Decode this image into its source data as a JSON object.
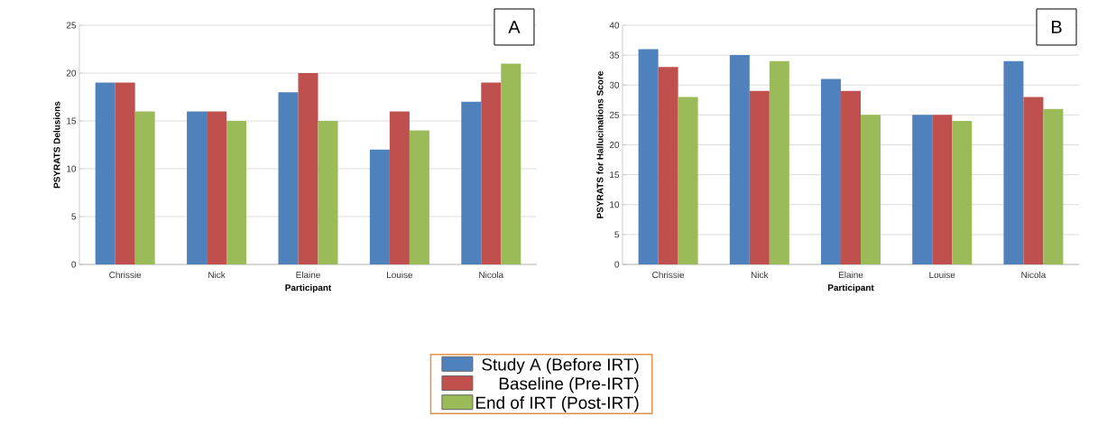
{
  "chart_data": [
    {
      "type": "bar",
      "categories": [
        "Chrissie",
        "Nick",
        "Elaine",
        "Louise",
        "Nicola"
      ],
      "xlabel": "Participant",
      "ylabel": "PSYRATS Delusions",
      "ylim": [
        0,
        25
      ],
      "yticks": [
        0,
        5,
        10,
        15,
        20,
        25
      ],
      "grid": "y",
      "legend": "bottom",
      "annotations": [
        "A"
      ],
      "series": [
        {
          "name": "Study A (Before IRT)",
          "color": "#4f81bd",
          "values": [
            19,
            16,
            18,
            12,
            17
          ]
        },
        {
          "name": "Baseline (Pre-IRT)",
          "color": "#c0504d",
          "values": [
            19,
            16,
            20,
            16,
            19
          ]
        },
        {
          "name": "End of IRT (Post-IRT)",
          "color": "#9bbb59",
          "values": [
            16,
            15,
            15,
            14,
            21
          ]
        }
      ]
    },
    {
      "type": "bar",
      "categories": [
        "Chrissie",
        "Nick",
        "Elaine",
        "Louise",
        "Nicola"
      ],
      "xlabel": "Participant",
      "ylabel": "PSYRATS for Hallucinations  Score",
      "ylim": [
        0,
        40
      ],
      "yticks": [
        0,
        5,
        10,
        15,
        20,
        25,
        30,
        35,
        40
      ],
      "grid": "y",
      "annotations": [
        "B"
      ],
      "series": [
        {
          "color": "#4f81bd",
          "values": [
            36,
            35,
            31,
            25,
            34
          ]
        },
        {
          "color": "#c0504d",
          "values": [
            33,
            29,
            29,
            25,
            28
          ]
        },
        {
          "color": "#9bbb59",
          "values": [
            28,
            34,
            25,
            24,
            26
          ]
        }
      ]
    }
  ]
}
